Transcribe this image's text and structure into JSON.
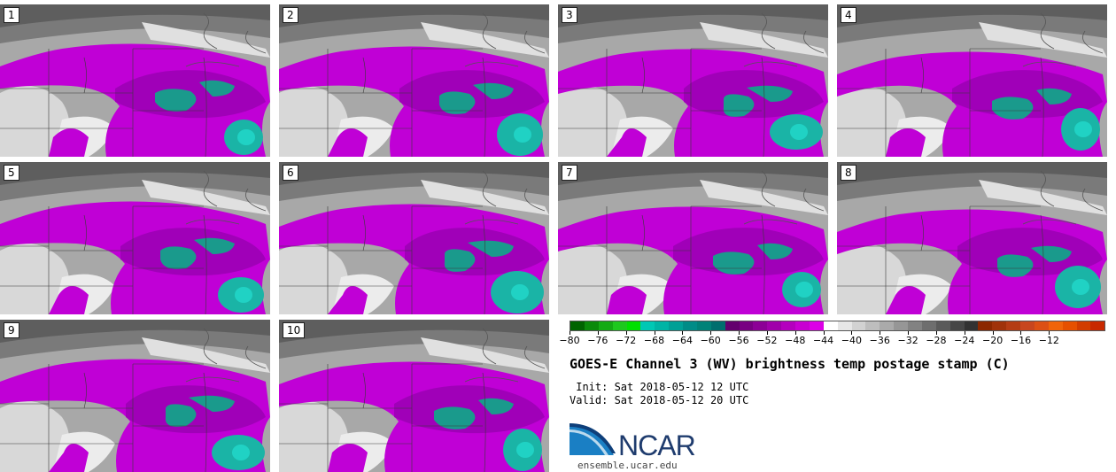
{
  "panels": [
    {
      "label": "1"
    },
    {
      "label": "2"
    },
    {
      "label": "3"
    },
    {
      "label": "4"
    },
    {
      "label": "5"
    },
    {
      "label": "6"
    },
    {
      "label": "7"
    },
    {
      "label": "8"
    },
    {
      "label": "9"
    },
    {
      "label": "10"
    }
  ],
  "colorbar": {
    "colors": [
      "#006400",
      "#0a8a0a",
      "#14aa14",
      "#1ec81e",
      "#00e000",
      "#00c8b4",
      "#00b4a5",
      "#00a096",
      "#008c87",
      "#008278",
      "#006e6e",
      "#64006e",
      "#780082",
      "#8c0096",
      "#a000aa",
      "#b400be",
      "#c800d2",
      "#dc00e6",
      "#ffffff",
      "#e6e6e6",
      "#d2d2d2",
      "#bebebe",
      "#aaaaaa",
      "#969696",
      "#828282",
      "#6e6e6e",
      "#5a5a5a",
      "#464646",
      "#323232",
      "#8c2800",
      "#a0320a",
      "#b43c14",
      "#c8461e",
      "#dc5014",
      "#f0640a",
      "#e65000",
      "#d23c00",
      "#c82800"
    ],
    "tick_labels": [
      "−80",
      "−76",
      "−72",
      "−68",
      "−64",
      "−60",
      "−56",
      "−52",
      "−48",
      "−44",
      "−40",
      "−36",
      "−32",
      "−28",
      "−24",
      "−20",
      "−16",
      "−12"
    ]
  },
  "title": "GOES-E Channel 3 (WV) brightness temp postage stamp (C)",
  "init": " Init: Sat 2018-05-12 12 UTC",
  "valid": "Valid: Sat 2018-05-12 20 UTC",
  "logo": {
    "text": "NCAR",
    "site": "ensemble.ucar.edu"
  }
}
